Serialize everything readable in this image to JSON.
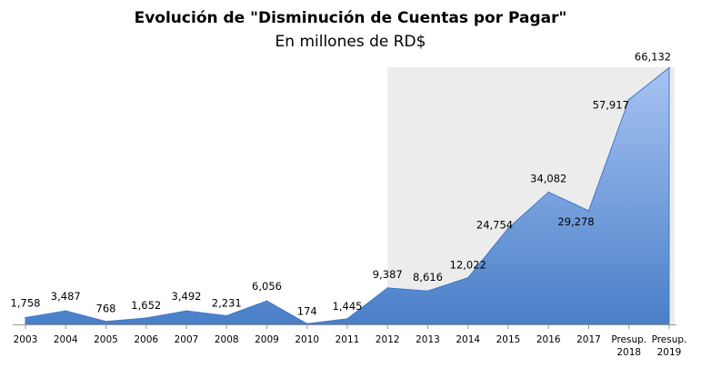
{
  "chart_data": {
    "type": "area",
    "title": "Evolución de \"Disminución de Cuentas por Pagar\"",
    "subtitle": "En millones de RD$",
    "categories": [
      "2003",
      "2004",
      "2005",
      "2006",
      "2007",
      "2008",
      "2009",
      "2010",
      "2011",
      "2012",
      "2013",
      "2014",
      "2015",
      "2016",
      "2017",
      "Presup. 2018",
      "Presup. 2019"
    ],
    "values": [
      1758,
      3487,
      768,
      1652,
      3492,
      2231,
      6056,
      174,
      1445,
      9387,
      8616,
      12022,
      24754,
      34082,
      29278,
      57917,
      66132
    ],
    "data_labels": [
      "1,758",
      "3,487",
      "768",
      "1,652",
      "3,492",
      "2,231",
      "6,056",
      "174",
      "1,445",
      "9,387",
      "8,616",
      "12,022",
      "24,754",
      "34,082",
      "29,278",
      "57,917",
      "66,132"
    ],
    "highlight_from": "2012",
    "ylim": [
      0,
      70000
    ],
    "grid": false,
    "legend": "none",
    "colors": {
      "area_top": "#a7c3f2",
      "area_bottom": "#4a7fc8",
      "area_edge": "#3f78c8",
      "highlight_band": "#ececec",
      "axis": "#999999"
    }
  }
}
